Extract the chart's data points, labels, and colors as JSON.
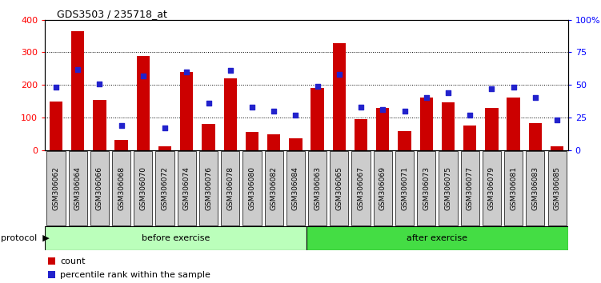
{
  "title": "GDS3503 / 235718_at",
  "categories": [
    "GSM306062",
    "GSM306064",
    "GSM306066",
    "GSM306068",
    "GSM306070",
    "GSM306072",
    "GSM306074",
    "GSM306076",
    "GSM306078",
    "GSM306080",
    "GSM306082",
    "GSM306084",
    "GSM306063",
    "GSM306065",
    "GSM306067",
    "GSM306069",
    "GSM306071",
    "GSM306073",
    "GSM306075",
    "GSM306077",
    "GSM306079",
    "GSM306081",
    "GSM306083",
    "GSM306085"
  ],
  "count_values": [
    150,
    365,
    155,
    30,
    288,
    12,
    240,
    80,
    220,
    55,
    47,
    35,
    190,
    328,
    95,
    130,
    58,
    162,
    147,
    75,
    130,
    162,
    82,
    12
  ],
  "percentile_values": [
    48,
    62,
    51,
    19,
    57,
    17,
    60,
    36,
    61,
    33,
    30,
    27,
    49,
    58,
    33,
    31,
    30,
    40,
    44,
    27,
    47,
    48,
    40,
    23
  ],
  "bar_color": "#cc0000",
  "dot_color": "#2222cc",
  "ylim_left": [
    0,
    400
  ],
  "ylim_right": [
    0,
    100
  ],
  "yticks_left": [
    0,
    100,
    200,
    300,
    400
  ],
  "yticks_right": [
    0,
    25,
    50,
    75,
    100
  ],
  "ytick_labels_right": [
    "0",
    "25",
    "50",
    "75",
    "100%"
  ],
  "grid_color": "black",
  "before_exercise_count": 12,
  "after_exercise_count": 12,
  "before_color": "#bbffbb",
  "after_color": "#44dd44",
  "protocol_label": "protocol",
  "before_label": "before exercise",
  "after_label": "after exercise",
  "legend_count_label": "count",
  "legend_percentile_label": "percentile rank within the sample",
  "axes_bg": "#ffffff",
  "tick_bg": "#cccccc"
}
